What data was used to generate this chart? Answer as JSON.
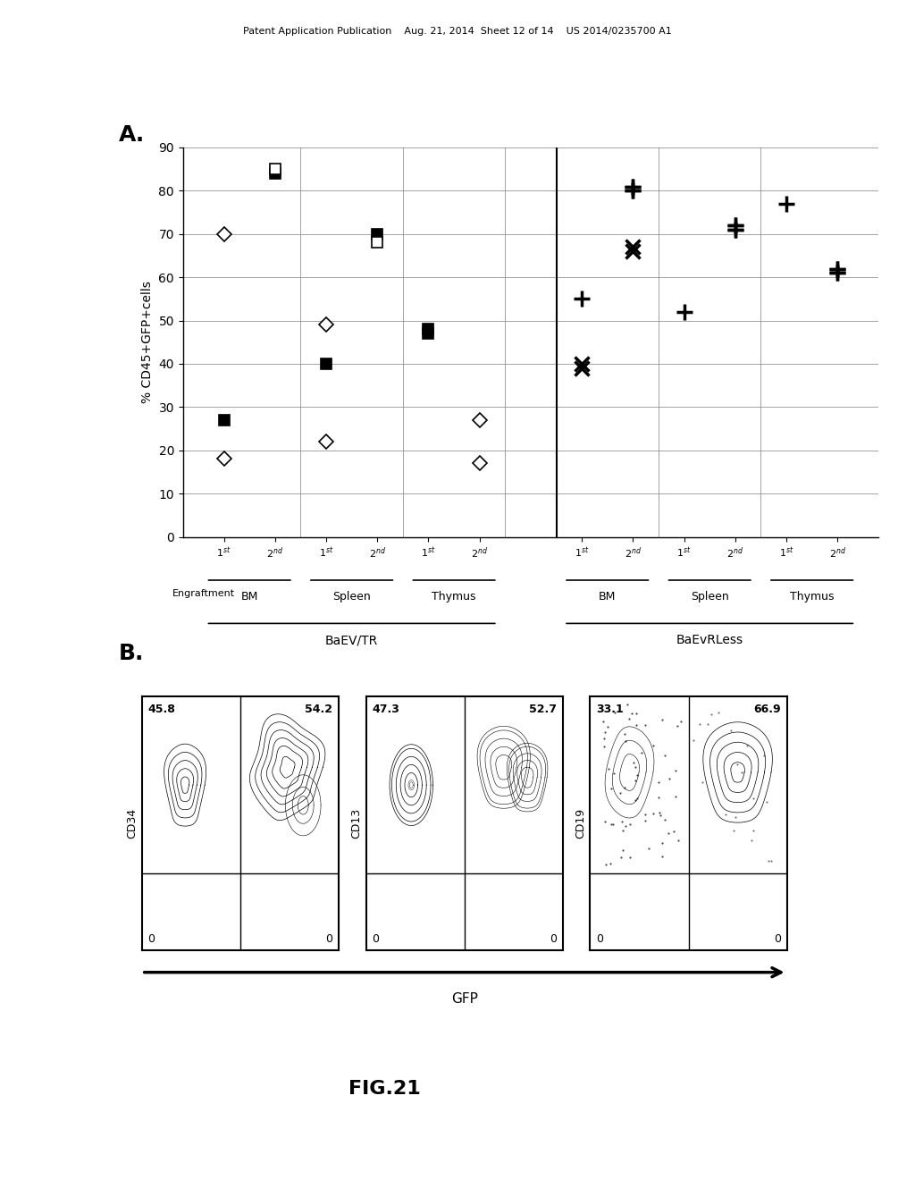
{
  "header_text": "Patent Application Publication    Aug. 21, 2014  Sheet 12 of 14    US 2014/0235700 A1",
  "panel_A_label": "A.",
  "panel_B_label": "B.",
  "figure_label": "FIG.21",
  "ylabel": "% CD45+GFP+cells",
  "engraftment_label": "Engraftment",
  "ylim": [
    0,
    90
  ],
  "yticks": [
    0,
    10,
    20,
    30,
    40,
    50,
    60,
    70,
    80,
    90
  ],
  "flow_panels": [
    {
      "ul": "45.8",
      "ur": "54.2",
      "ll": "0",
      "lr": "0",
      "ylabel": "CD34"
    },
    {
      "ul": "47.3",
      "ur": "52.7",
      "ll": "0",
      "lr": "0",
      "ylabel": "CD13"
    },
    {
      "ul": "33.1",
      "ur": "66.9",
      "ll": "0",
      "lr": "0",
      "ylabel": "CD19"
    }
  ],
  "gfp_label": "GFP",
  "bg_color": "#ffffff",
  "text_color": "#000000"
}
